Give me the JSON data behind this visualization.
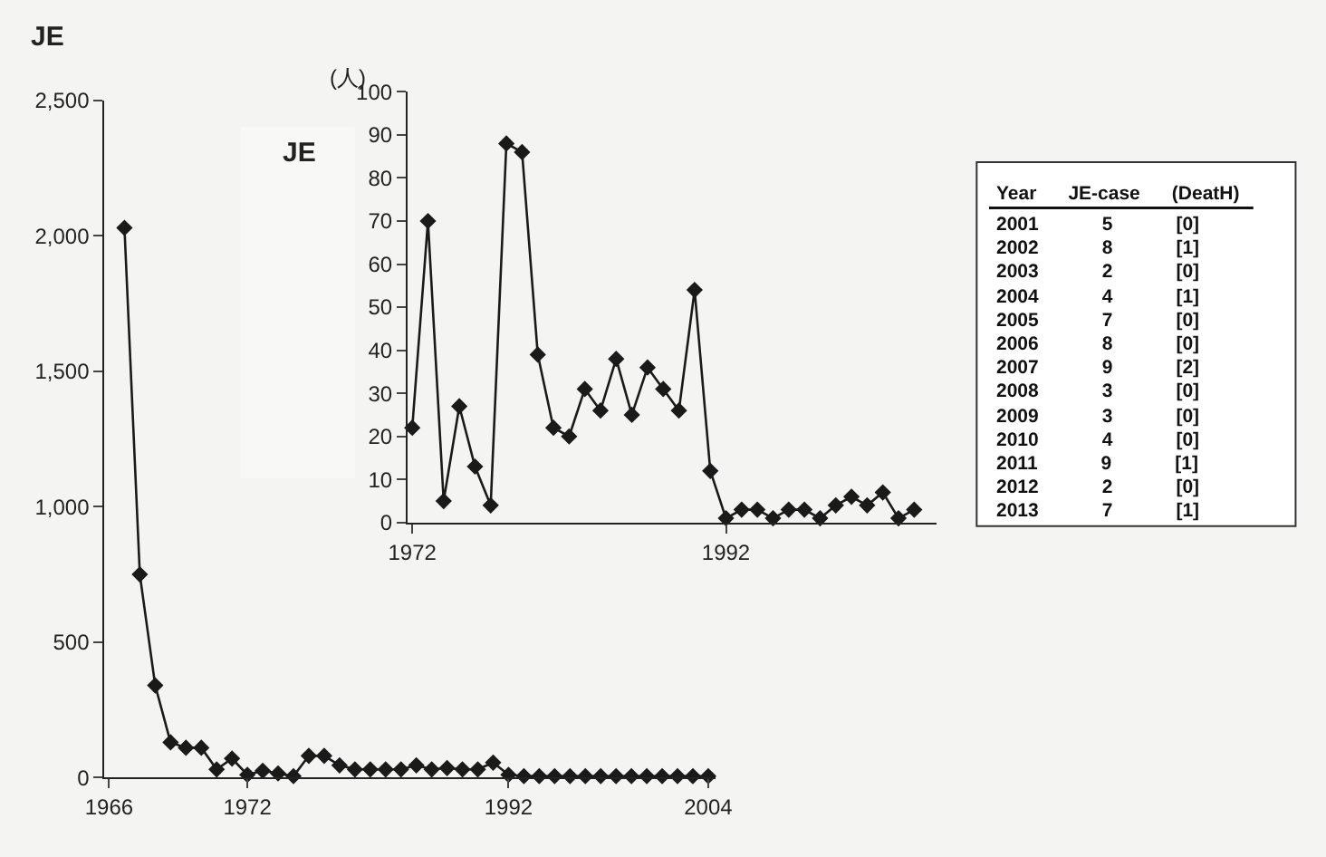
{
  "chart_data": [
    {
      "type": "line",
      "title": "JE",
      "categories": [
        "1966",
        null,
        null,
        null,
        null,
        null,
        null,
        null,
        null,
        "1972",
        null,
        null,
        null,
        null,
        null,
        null,
        null,
        null,
        null,
        null,
        null,
        null,
        null,
        null,
        null,
        null,
        "1992",
        null,
        null,
        null,
        null,
        null,
        null,
        null,
        null,
        null,
        null,
        null,
        null,
        "2004"
      ],
      "series": [
        {
          "color": "#1a1a1a",
          "values": [
            null,
            2030,
            750,
            340,
            130,
            110,
            110,
            30,
            70,
            10,
            25,
            15,
            5,
            80,
            80,
            45,
            30,
            30,
            30,
            30,
            45,
            30,
            35,
            30,
            30,
            55,
            10,
            5,
            5,
            5,
            5,
            5,
            5,
            5,
            5,
            5,
            5,
            5,
            5,
            5
          ]
        }
      ],
      "ylim": [
        0,
        2500
      ],
      "yticks": [
        0,
        500,
        {
          "value": 1000,
          "label": "1,000"
        },
        {
          "value": 1500,
          "label": "1,500"
        },
        {
          "value": 2000,
          "label": "2,000"
        },
        {
          "value": 2500,
          "label": "2,500"
        }
      ],
      "marker": "diamond",
      "line_style": "solid"
    },
    {
      "type": "line",
      "ylabel": "(人)",
      "annotations": [
        "JE"
      ],
      "categories": [
        "1972",
        null,
        null,
        null,
        null,
        null,
        null,
        null,
        null,
        null,
        null,
        null,
        null,
        null,
        null,
        null,
        null,
        null,
        null,
        null,
        "1992",
        null,
        null,
        null,
        null,
        null,
        null,
        null,
        null,
        null,
        null,
        null,
        null
      ],
      "series": [
        {
          "color": "#1a1a1a",
          "values": [
            22,
            70,
            5,
            27,
            13,
            4,
            88,
            86,
            39,
            22,
            20,
            31,
            26,
            38,
            25,
            36,
            31,
            26,
            54,
            12,
            1,
            3,
            3,
            1,
            3,
            3,
            1,
            4,
            6,
            4,
            7,
            1,
            3
          ]
        }
      ],
      "ylim": [
        0,
        100
      ],
      "yticks": [
        0,
        10,
        20,
        30,
        40,
        50,
        60,
        70,
        80,
        90,
        100
      ],
      "marker": "diamond",
      "line_style": "solid"
    },
    {
      "type": "other",
      "annotations": [
        "Year",
        "JE-case",
        "(DeatH)",
        "2001",
        "5",
        "[0]",
        "2002",
        "8",
        "[1]",
        "2003",
        "2",
        "[0]",
        "2004",
        "4",
        "[1]",
        "2005",
        "7",
        "[0]",
        "2006",
        "8",
        "[0]",
        "2007",
        "9",
        "[2]",
        "2008",
        "3",
        "[0]",
        "2009",
        "3",
        "[0]",
        "2010",
        "4",
        "[0]",
        "2011",
        "9",
        "[1]",
        "2012",
        "2",
        "[0]",
        "2013",
        "7",
        "[1]"
      ]
    }
  ]
}
